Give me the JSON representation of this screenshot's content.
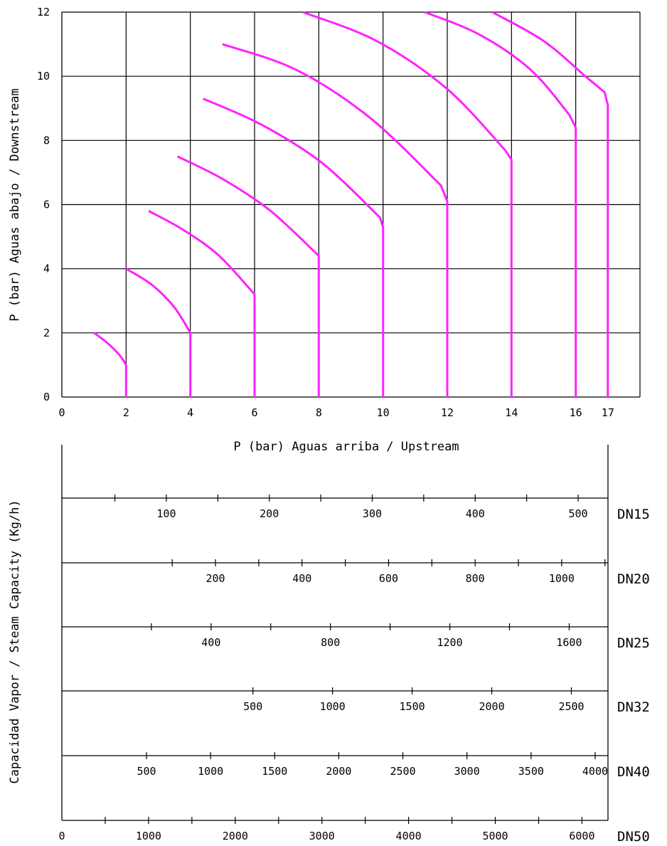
{
  "chart_data": [
    {
      "type": "line",
      "title": "",
      "xlabel": "P (bar)  Aguas arriba / Upstream",
      "ylabel": "P (bar)  Aguas abajo / Downstream",
      "xlim": [
        0,
        18
      ],
      "ylim": [
        0,
        12
      ],
      "x_ticks": [
        0,
        2,
        4,
        6,
        8,
        10,
        12,
        14,
        16,
        17
      ],
      "y_ticks": [
        0,
        2,
        4,
        6,
        8,
        10,
        12
      ],
      "grid": true,
      "grid_x": [
        2,
        4,
        6,
        8,
        10,
        12,
        14,
        16,
        18
      ],
      "grid_y": [
        2,
        4,
        6,
        8,
        10,
        12
      ],
      "line_color": "#ff22ff",
      "series": [
        {
          "x": [
            1,
            1.4,
            1.8,
            2,
            2,
            2
          ],
          "y": [
            2,
            1.7,
            1.3,
            1.0,
            0.5,
            0
          ]
        },
        {
          "x": [
            2,
            2.8,
            3.5,
            4,
            4,
            4
          ],
          "y": [
            4,
            3.5,
            2.8,
            2.0,
            1.0,
            0
          ]
        },
        {
          "x": [
            2.7,
            3.8,
            4.9,
            6,
            6,
            6
          ],
          "y": [
            5.8,
            5.2,
            4.4,
            3.2,
            1.6,
            0
          ]
        },
        {
          "x": [
            3.6,
            5,
            6.5,
            8,
            8,
            8
          ],
          "y": [
            7.5,
            6.8,
            5.8,
            4.4,
            2.2,
            0
          ]
        },
        {
          "x": [
            4.4,
            6.2,
            8.1,
            9.9,
            10,
            10
          ],
          "y": [
            9.3,
            8.5,
            7.3,
            5.6,
            5.3,
            0
          ]
        },
        {
          "x": [
            5,
            7.3,
            9.6,
            11.8,
            12,
            12
          ],
          "y": [
            11,
            10.2,
            8.7,
            6.6,
            6.1,
            0
          ]
        },
        {
          "x": [
            7.5,
            9.8,
            12,
            13.8,
            14,
            14
          ],
          "y": [
            12,
            11.1,
            9.6,
            7.7,
            7.4,
            0
          ]
        },
        {
          "x": [
            11.3,
            13,
            14.6,
            15.8,
            16,
            16
          ],
          "y": [
            12,
            11.3,
            10.2,
            8.8,
            8.4,
            0
          ]
        },
        {
          "x": [
            13.4,
            15,
            16.3,
            16.9,
            17,
            17
          ],
          "y": [
            12,
            11.1,
            10,
            9.5,
            9.1,
            0
          ]
        }
      ]
    },
    {
      "type": "table",
      "ylabel": "Capacidad Vapor / Steam Capacity (Kg/h)",
      "scales": [
        {
          "name": "DN15",
          "labels": [
            "100",
            "200",
            "300",
            "400",
            "500"
          ],
          "values": [
            100,
            200,
            300,
            400,
            500
          ],
          "minor": [
            50,
            150,
            250,
            350,
            450
          ]
        },
        {
          "name": "DN20",
          "labels": [
            "200",
            "400",
            "600",
            "800",
            "1000"
          ],
          "values": [
            200,
            400,
            600,
            800,
            1000
          ],
          "minor": [
            100,
            300,
            500,
            700,
            900,
            1100
          ]
        },
        {
          "name": "DN25",
          "labels": [
            "400",
            "800",
            "1200",
            "1600"
          ],
          "values": [
            400,
            800,
            1200,
            1600
          ],
          "minor": [
            200,
            600,
            1000,
            1400
          ]
        },
        {
          "name": "DN32",
          "labels": [
            "500",
            "1000",
            "1500",
            "2000",
            "2500"
          ],
          "values": [
            500,
            1000,
            1500,
            2000,
            2500
          ],
          "minor": []
        },
        {
          "name": "DN40",
          "labels": [
            "500",
            "1000",
            "1500",
            "2000",
            "2500",
            "3000",
            "3500",
            "4000"
          ],
          "values": [
            500,
            1000,
            1500,
            2000,
            2500,
            3000,
            3500,
            4000
          ],
          "minor": []
        },
        {
          "name": "DN50",
          "labels": [
            "0",
            "1000",
            "2000",
            "3000",
            "4000",
            "5000",
            "6000"
          ],
          "values": [
            0,
            1000,
            2000,
            3000,
            4000,
            5000,
            6000
          ],
          "minor": [
            500,
            1500,
            2500,
            3500,
            4500,
            5500
          ]
        }
      ]
    }
  ]
}
